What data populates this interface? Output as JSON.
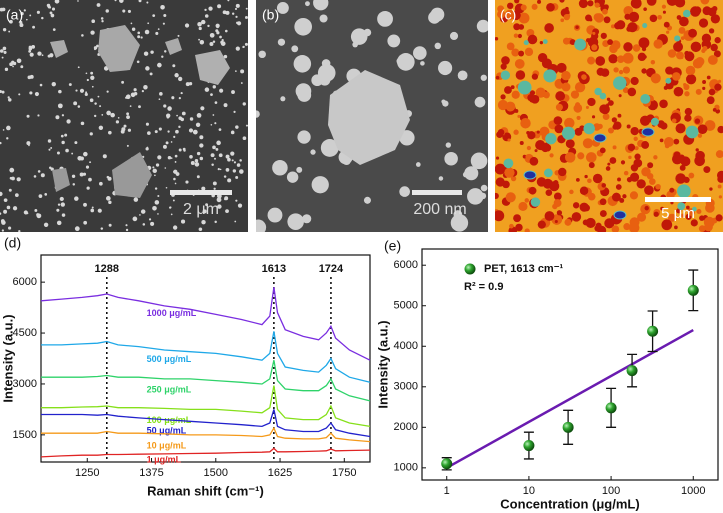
{
  "panels": [
    {
      "label": "(a)",
      "scale_bar": "2 μm"
    },
    {
      "label": "(b)",
      "scale_bar": "200 nm"
    },
    {
      "label": "(c)",
      "scale_bar": "5 μm"
    }
  ],
  "chart_data": [
    {
      "type": "line",
      "label": "(d)",
      "xlabel": "Raman shift (cm⁻¹)",
      "ylabel": "Intensity (a.u.)",
      "xlim": [
        1160,
        1800
      ],
      "ylim": [
        700,
        6800
      ],
      "xticks": [
        1250,
        1375,
        1500,
        1625,
        1750
      ],
      "yticks": [
        1500,
        3000,
        4500,
        6000
      ],
      "peaks": [
        1288,
        1613,
        1724
      ],
      "x": [
        1160,
        1200,
        1240,
        1270,
        1288,
        1310,
        1350,
        1400,
        1450,
        1500,
        1550,
        1590,
        1605,
        1613,
        1620,
        1635,
        1670,
        1700,
        1715,
        1724,
        1733,
        1760,
        1800
      ],
      "series": [
        {
          "name": "1000 μg/mL",
          "color": "#7a2ee0",
          "values": [
            5450,
            5500,
            5550,
            5600,
            5650,
            5550,
            5450,
            5300,
            5200,
            5050,
            4900,
            4750,
            5000,
            5850,
            5100,
            4600,
            4400,
            4300,
            4500,
            4700,
            4350,
            4000,
            3700
          ]
        },
        {
          "name": "500 μg/mL",
          "color": "#1fa8e8",
          "values": [
            4150,
            4150,
            4180,
            4200,
            4250,
            4150,
            4100,
            4000,
            3950,
            3900,
            3800,
            3700,
            3900,
            4550,
            3900,
            3500,
            3400,
            3350,
            3550,
            3750,
            3450,
            3200,
            3050
          ]
        },
        {
          "name": "250 μg/mL",
          "color": "#2fd36a",
          "values": [
            3200,
            3200,
            3200,
            3220,
            3250,
            3200,
            3200,
            3150,
            3150,
            3100,
            3050,
            3000,
            3150,
            3700,
            3100,
            2850,
            2800,
            2800,
            2950,
            3150,
            2850,
            2650,
            2500
          ]
        },
        {
          "name": "100 μg/mL",
          "color": "#86e01a",
          "values": [
            2300,
            2300,
            2320,
            2330,
            2350,
            2300,
            2300,
            2280,
            2250,
            2250,
            2200,
            2150,
            2300,
            2950,
            2250,
            2000,
            1950,
            1950,
            2100,
            2350,
            2000,
            1850,
            1750
          ]
        },
        {
          "name": "50 μg/mL",
          "color": "#2222cc",
          "values": [
            2100,
            2100,
            2100,
            2080,
            2100,
            2050,
            2000,
            1950,
            1900,
            1850,
            1800,
            1750,
            1850,
            2250,
            1750,
            1650,
            1600,
            1600,
            1700,
            1850,
            1650,
            1550,
            1450
          ]
        },
        {
          "name": "10 μg/mL",
          "color": "#f59a1a",
          "values": [
            1550,
            1550,
            1550,
            1550,
            1600,
            1550,
            1550,
            1530,
            1500,
            1500,
            1480,
            1450,
            1500,
            1700,
            1450,
            1400,
            1380,
            1380,
            1420,
            1550,
            1400,
            1350,
            1300
          ]
        },
        {
          "name": "1 μg/mL",
          "color": "#e02424",
          "values": [
            850,
            880,
            900,
            900,
            920,
            920,
            930,
            940,
            950,
            960,
            980,
            990,
            1000,
            1100,
            1000,
            1000,
            1010,
            1020,
            1030,
            1080,
            1030,
            1040,
            1050
          ]
        }
      ]
    },
    {
      "type": "scatter",
      "label": "(e)",
      "xlabel": "Concentration (μg/mL)",
      "ylabel": "Intensity (a.u.)",
      "xlog": true,
      "xlim": [
        0.5,
        2000
      ],
      "ylim": [
        700,
        6400
      ],
      "xticks": [
        1,
        10,
        100,
        1000
      ],
      "yticks": [
        1000,
        2000,
        3000,
        4000,
        5000,
        6000
      ],
      "annotation": "R² = 0.9",
      "series": [
        {
          "name": "PET, 1613 cm⁻¹",
          "color": "#1e9a1e",
          "x": [
            1,
            10,
            30,
            100,
            180,
            320,
            1000
          ],
          "values": [
            1100,
            1550,
            2000,
            2480,
            3400,
            4370,
            5380
          ],
          "errors": [
            150,
            330,
            420,
            480,
            400,
            500,
            500
          ]
        }
      ],
      "fit": {
        "color": "#6a1bb0",
        "x": [
          1,
          1000
        ],
        "values": [
          1000,
          4400
        ]
      }
    }
  ]
}
